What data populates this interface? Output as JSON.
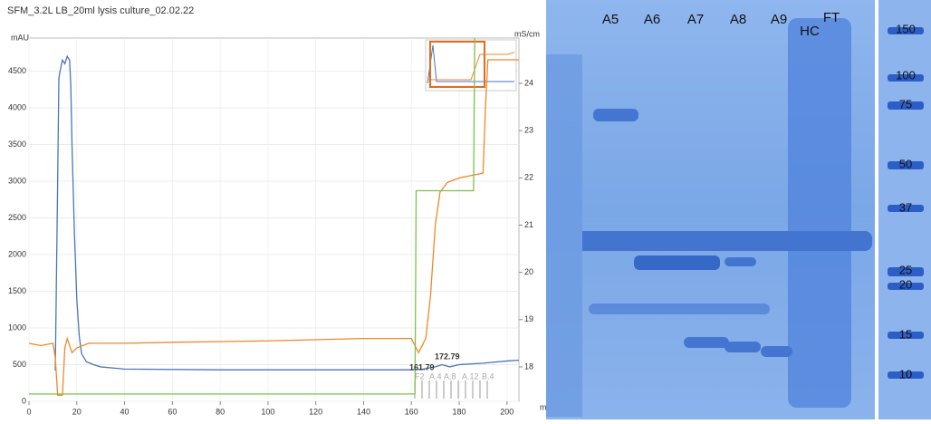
{
  "chart_data": {
    "type": "line",
    "title": "SFM_3.2L LB_20ml lysis culture_02.02.22",
    "y_label": "mAU",
    "y2_label": "mS/cm",
    "x_label": "ml",
    "xlim": [
      0,
      205
    ],
    "xticks": [
      0,
      20,
      40,
      60,
      80,
      100,
      120,
      140,
      160,
      180,
      200
    ],
    "ylim": [
      0,
      4950
    ],
    "yticks": [
      0,
      500,
      1000,
      1500,
      2000,
      2500,
      3000,
      3500,
      4000,
      4500
    ],
    "y2lim": [
      17.27,
      24.96
    ],
    "y2ticks": [
      18,
      19,
      20,
      21,
      22,
      23,
      24
    ],
    "grid": true,
    "series": [
      {
        "color": "#4a76b8",
        "x": [
          0,
          0.5,
          1,
          11,
          12,
          12.5,
          13,
          14,
          15,
          16,
          17,
          17.5,
          18,
          19,
          20,
          21,
          22,
          24,
          27,
          30,
          40,
          80,
          120,
          160,
          165,
          170,
          172.8,
          176,
          180,
          190,
          200,
          205
        ],
        "values": [
          null,
          2400,
          null,
          420,
          3000,
          4400,
          4500,
          4650,
          4600,
          4700,
          4650,
          4300,
          3500,
          2300,
          1400,
          900,
          650,
          540,
          500,
          470,
          440,
          430,
          430,
          430,
          440,
          470,
          500,
          470,
          500,
          520,
          550,
          560
        ]
      },
      {
        "color": "#f0872a",
        "axis": "y2",
        "x": [
          0,
          5,
          10,
          11,
          12,
          14,
          15,
          16,
          18,
          20,
          25,
          40,
          60,
          100,
          140,
          160,
          163,
          166,
          168,
          170,
          172,
          175,
          180,
          185,
          190,
          191,
          192,
          200,
          205
        ],
        "values": [
          18.5,
          18.45,
          18.5,
          18.2,
          17.4,
          17.4,
          18.4,
          18.6,
          18.3,
          18.4,
          18.5,
          18.5,
          18.52,
          18.55,
          18.6,
          18.6,
          18.3,
          18.6,
          19.5,
          21,
          21.7,
          21.9,
          22,
          22.05,
          22.1,
          23.5,
          24.5,
          24.5,
          24.5
        ]
      },
      {
        "color": "#7ec04a",
        "x": [
          0,
          161.5,
          162,
          186,
          186.5
        ],
        "values": [
          100,
          100,
          2870,
          2870,
          4950
        ]
      }
    ],
    "annotations": [
      "161.79",
      "172.79"
    ],
    "fractions": [
      "F2",
      "A.4",
      "A.8",
      "A.12",
      "B.4"
    ]
  },
  "gel": {
    "lanes": [
      "A5",
      "A6",
      "A7",
      "A8",
      "A9",
      "HC",
      "FT"
    ],
    "markers": [
      "150",
      "100",
      "75",
      "50",
      "37",
      "25",
      "20",
      "15",
      "10"
    ]
  }
}
